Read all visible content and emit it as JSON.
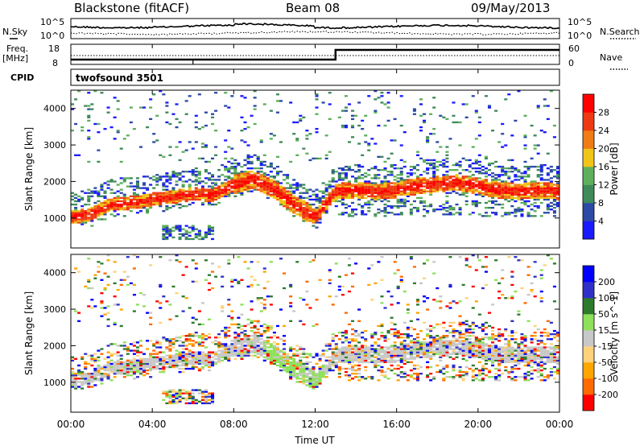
{
  "header": {
    "title": "Blackstone (fitACF)",
    "beam": "Beam 08",
    "date": "09/May/2013"
  },
  "noise_panel": {
    "left_label": "N.Sky",
    "right_label": "N.Search",
    "left_ticks": [
      "10^5",
      "10^0"
    ],
    "right_ticks": [
      "10^5",
      "10^0"
    ]
  },
  "freq_panel": {
    "left_label_line1": "Freq.",
    "left_label_line2": "[MHz]",
    "right_label": "Nave",
    "left_ticks": [
      "18",
      "8"
    ],
    "right_ticks": [
      "60",
      "0"
    ],
    "freq_switch_hour": 13.0
  },
  "cpid_panel": {
    "label": "CPID",
    "text": "twofsound 3501"
  },
  "x_axis": {
    "label": "Time UT",
    "ticks": [
      "00:00",
      "04:00",
      "08:00",
      "12:00",
      "16:00",
      "20:00",
      "00:00"
    ],
    "range_hours": [
      0,
      24
    ]
  },
  "colors": {
    "power_scale": [
      "#1a1aff",
      "#2c4aa6",
      "#3f8a5a",
      "#5eb05c",
      "#f0c419",
      "#f07c14",
      "#ee3a12",
      "#ff0000"
    ],
    "velocity_scale": [
      "#ff0000",
      "#ff6a00",
      "#ffa500",
      "#ffd27a",
      "#c8c8c8",
      "#8ee05a",
      "#2c7a2c",
      "#3030c8",
      "#0000ff"
    ]
  },
  "chart_data": [
    {
      "type": "heatmap",
      "title": "",
      "xlabel": "Time UT",
      "ylabel": "Slant Range [km]",
      "xlim": [
        0,
        24
      ],
      "ylim": [
        180,
        4500
      ],
      "yticks": [
        1000,
        2000,
        3000,
        4000
      ],
      "colorbar": {
        "label": "Power [dB]",
        "range": [
          0,
          30
        ],
        "ticks": [
          "4",
          "8",
          "12",
          "16",
          "20",
          "24",
          "28"
        ]
      },
      "main_band_km_by_hour": [
        [
          0,
          1000
        ],
        [
          1,
          1080
        ],
        [
          2,
          1350
        ],
        [
          3,
          1400
        ],
        [
          4,
          1480
        ],
        [
          5,
          1550
        ],
        [
          6,
          1650
        ],
        [
          7,
          1600
        ],
        [
          8,
          1900
        ],
        [
          9,
          2050
        ],
        [
          10,
          1750
        ],
        [
          11,
          1350
        ],
        [
          12,
          1000
        ],
        [
          13,
          1700
        ],
        [
          14,
          1750
        ],
        [
          15,
          1700
        ],
        [
          16,
          1750
        ],
        [
          17,
          1850
        ],
        [
          18,
          1900
        ],
        [
          19,
          1950
        ],
        [
          20,
          1850
        ],
        [
          21,
          1750
        ],
        [
          22,
          1700
        ],
        [
          23,
          1750
        ],
        [
          24,
          1700
        ]
      ]
    },
    {
      "type": "heatmap",
      "title": "",
      "xlabel": "Time UT",
      "ylabel": "Slant Range [km]",
      "xlim": [
        0,
        24
      ],
      "ylim": [
        180,
        4500
      ],
      "yticks": [
        1000,
        2000,
        3000,
        4000
      ],
      "colorbar": {
        "label": "Velocity [m s^-1]",
        "range": [
          -250,
          250
        ],
        "ticks": [
          "200",
          "100",
          "50",
          "15",
          "-15",
          "-50",
          "-100",
          "-200"
        ]
      },
      "main_band_km_by_hour": [
        [
          0,
          1000
        ],
        [
          1,
          1080
        ],
        [
          2,
          1350
        ],
        [
          3,
          1400
        ],
        [
          4,
          1480
        ],
        [
          5,
          1550
        ],
        [
          6,
          1650
        ],
        [
          7,
          1600
        ],
        [
          8,
          1900
        ],
        [
          9,
          2050
        ],
        [
          10,
          1750
        ],
        [
          11,
          1350
        ],
        [
          12,
          1000
        ],
        [
          13,
          1700
        ],
        [
          14,
          1750
        ],
        [
          15,
          1700
        ],
        [
          16,
          1750
        ],
        [
          17,
          1850
        ],
        [
          18,
          1900
        ],
        [
          19,
          1950
        ],
        [
          20,
          1850
        ],
        [
          21,
          1750
        ],
        [
          22,
          1700
        ],
        [
          23,
          1750
        ],
        [
          24,
          1700
        ]
      ]
    }
  ]
}
